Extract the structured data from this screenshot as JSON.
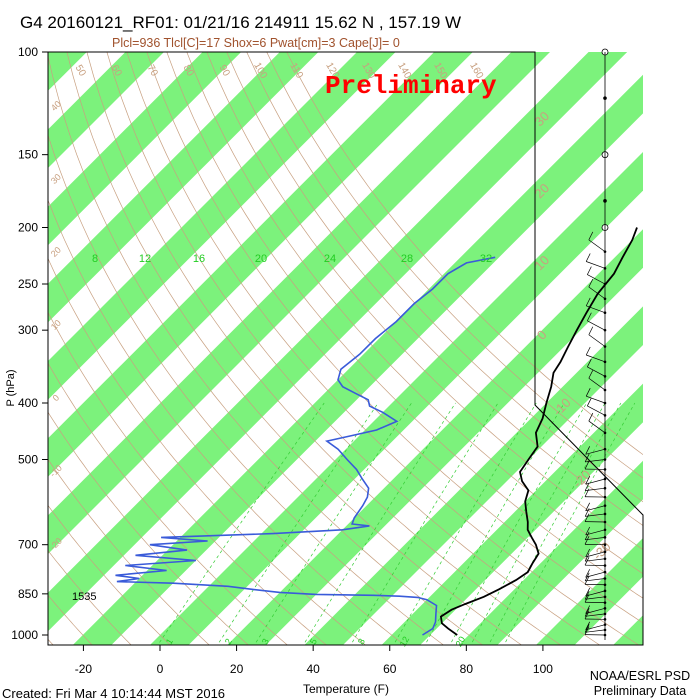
{
  "header": {
    "title": "G4 20160121_RF01: 01/21/16 214911  15.62 N , 157.19 W",
    "subtitle": "Plcl=936 Tlcl[C]=17 Shox=6 Pwat[cm]=3 Cape[J]= 0"
  },
  "watermark": "Preliminary",
  "footer": {
    "created": "Created: Fri Mar  4 10:14:44 MST 2016",
    "org": "NOAA/ESRL PSD",
    "status": "Preliminary Data",
    "count_label": "1535"
  },
  "colors": {
    "band": "#7CF27C",
    "temperature": "#000000",
    "dewpoint": "#3A5BD9",
    "dry_adiabat": "#C8A080",
    "mixing_ratio": "#33CC33",
    "watermark": "#FF0000"
  },
  "chart_data": {
    "type": "line",
    "title": "G4 20160121_RF01: 01/21/16 214911  15.62 N , 157.19 W",
    "xlabel": "Temperature (F)",
    "ylabel": "P (hPa)",
    "xlim": [
      -28,
      108
    ],
    "ylim": [
      1050,
      100
    ],
    "y_scale": "log",
    "x_ticks": [
      -20,
      0,
      20,
      40,
      60,
      80,
      100
    ],
    "y_ticks": [
      100,
      150,
      200,
      250,
      300,
      400,
      500,
      700,
      850,
      1000
    ],
    "top_temp_labels": [
      50,
      60,
      70,
      80,
      90,
      100,
      110,
      120,
      130,
      140,
      150,
      160
    ],
    "right_temp_labels": [
      30,
      20,
      10,
      0,
      -10,
      -20,
      -30
    ],
    "left_temp_labels": [
      40,
      30,
      20,
      10,
      0,
      -10,
      -20
    ],
    "mixing_ratio_labels": [
      8,
      12,
      16,
      20,
      24,
      28,
      32
    ],
    "bottom_mixing_labels": [
      1,
      2,
      3,
      5,
      8,
      12,
      20
    ],
    "series": [
      {
        "name": "Temperature",
        "points": [
          [
            77,
            1000
          ],
          [
            73,
            975
          ],
          [
            70,
            955
          ],
          [
            68,
            930
          ],
          [
            69,
            905
          ],
          [
            71,
            885
          ],
          [
            74,
            860
          ],
          [
            76,
            835
          ],
          [
            78,
            805
          ],
          [
            79,
            780
          ],
          [
            78,
            755
          ],
          [
            77,
            725
          ],
          [
            74,
            700
          ],
          [
            71,
            680
          ],
          [
            68,
            660
          ],
          [
            66,
            640
          ],
          [
            63,
            615
          ],
          [
            60,
            590
          ],
          [
            58,
            565
          ],
          [
            54,
            545
          ],
          [
            51,
            525
          ],
          [
            50,
            500
          ],
          [
            49,
            475
          ],
          [
            45,
            450
          ],
          [
            43,
            425
          ],
          [
            40,
            400
          ],
          [
            37,
            375
          ],
          [
            34,
            355
          ],
          [
            33,
            340
          ],
          [
            31,
            320
          ],
          [
            29,
            300
          ],
          [
            27,
            280
          ],
          [
            25,
            260
          ],
          [
            24,
            240
          ],
          [
            22,
            225
          ],
          [
            20,
            210
          ],
          [
            18,
            200
          ]
        ]
      },
      {
        "name": "Dewpoint",
        "points": [
          [
            68,
            1000
          ],
          [
            69,
            975
          ],
          [
            68,
            950
          ],
          [
            66,
            920
          ],
          [
            64,
            890
          ],
          [
            60,
            870
          ],
          [
            57,
            862
          ],
          [
            52,
            858
          ],
          [
            45,
            855
          ],
          [
            30,
            852
          ],
          [
            20,
            845
          ],
          [
            12,
            835
          ],
          [
            5,
            825
          ],
          [
            -10,
            815
          ],
          [
            -25,
            810
          ],
          [
            -20,
            800
          ],
          [
            -27,
            790
          ],
          [
            -15,
            775
          ],
          [
            -27,
            760
          ],
          [
            -10,
            745
          ],
          [
            -27,
            730
          ],
          [
            -15,
            715
          ],
          [
            -26,
            700
          ],
          [
            -12,
            690
          ],
          [
            -25,
            680
          ],
          [
            3,
            670
          ],
          [
            20,
            660
          ],
          [
            26,
            650
          ],
          [
            21,
            645
          ],
          [
            20,
            630
          ],
          [
            19,
            600
          ],
          [
            18,
            580
          ],
          [
            16,
            560
          ],
          [
            12,
            540
          ],
          [
            8,
            520
          ],
          [
            3,
            500
          ],
          [
            -2,
            480
          ],
          [
            -7,
            465
          ],
          [
            -2,
            455
          ],
          [
            3,
            445
          ],
          [
            6,
            430
          ],
          [
            0,
            415
          ],
          [
            -5,
            405
          ],
          [
            -7,
            395
          ],
          [
            -12,
            385
          ],
          [
            -17,
            375
          ],
          [
            -20,
            365
          ],
          [
            -22,
            350
          ],
          [
            -21,
            330
          ],
          [
            -21,
            310
          ],
          [
            -20,
            290
          ],
          [
            -20,
            270
          ],
          [
            -19,
            255
          ],
          [
            -19,
            240
          ],
          [
            -17,
            230
          ],
          [
            -11,
            225
          ]
        ]
      }
    ],
    "grid": true,
    "legend": "none"
  }
}
